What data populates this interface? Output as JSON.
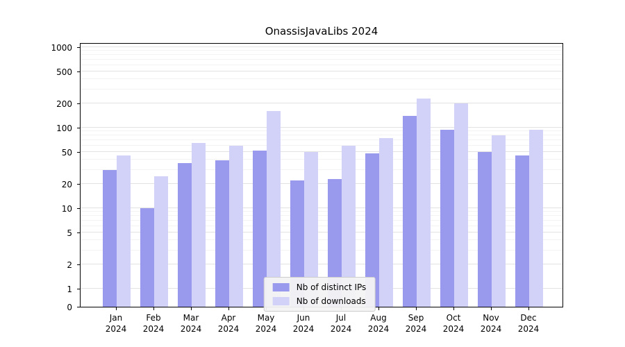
{
  "chart_data": {
    "type": "bar",
    "title": "OnassisJavaLibs 2024",
    "categories": [
      "Jan 2024",
      "Feb 2024",
      "Mar 2024",
      "Apr 2024",
      "May 2024",
      "Jun 2024",
      "Jul 2024",
      "Aug 2024",
      "Sep 2024",
      "Oct 2024",
      "Nov 2024",
      "Dec 2024"
    ],
    "series": [
      {
        "name": "Nb of distinct IPs",
        "color": "#9999ee",
        "values": [
          30,
          10,
          36,
          39,
          52,
          22,
          23,
          48,
          140,
          95,
          50,
          45
        ]
      },
      {
        "name": "Nb of downloads",
        "color": "#d2d2f8",
        "values": [
          45,
          25,
          65,
          60,
          160,
          50,
          60,
          75,
          230,
          200,
          80,
          95
        ]
      }
    ],
    "yscale": "symlog",
    "yticks": [
      0,
      1,
      2,
      5,
      10,
      20,
      50,
      100,
      200,
      500,
      1000
    ],
    "ylim": [
      0,
      1300
    ],
    "xlabel": "",
    "ylabel": "",
    "grid": true,
    "legend_position": "lower center"
  }
}
